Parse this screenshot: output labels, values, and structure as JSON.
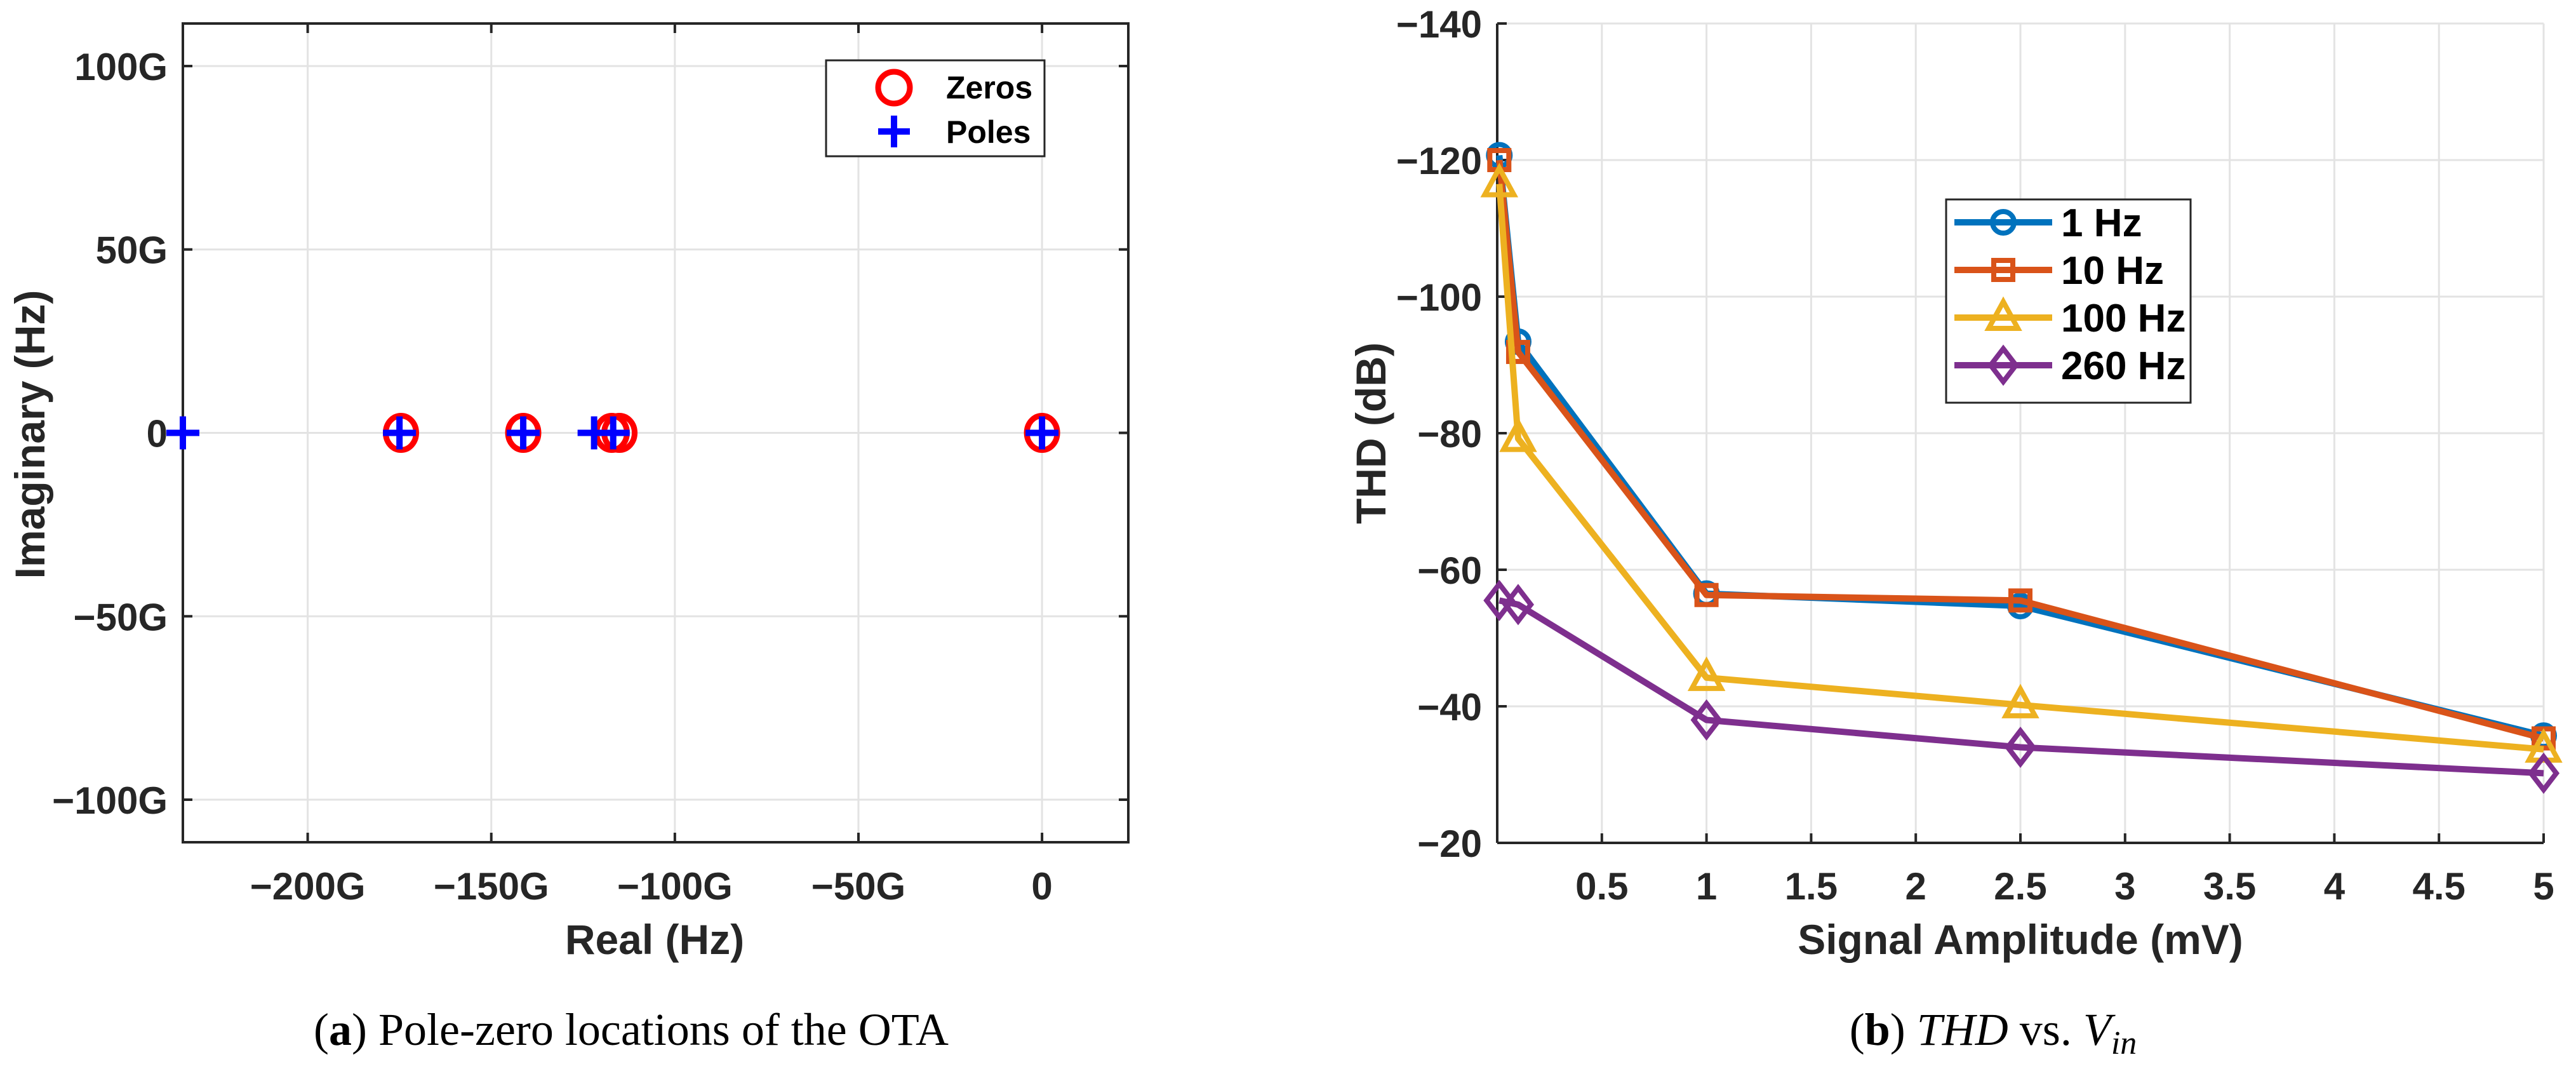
{
  "chart_data": [
    {
      "type": "scatter",
      "caption_label": "a",
      "caption": "Pole-zero locations of the OTA",
      "xlabel": "Real (Hz)",
      "ylabel": "Imaginary (Hz)",
      "xlim": [
        -234,
        23.5
      ],
      "ylim": [
        -111.6,
        111.6
      ],
      "unit_suffix": "G",
      "xticks": [
        -200,
        -150,
        -100,
        -50,
        0
      ],
      "xtick_labels": [
        "−200G",
        "−150G",
        "−100G",
        "−50G",
        "0"
      ],
      "yticks": [
        100,
        50,
        0,
        -50,
        -100
      ],
      "ytick_labels": [
        "100G",
        "50G",
        "0",
        "−50G",
        "−100G"
      ],
      "grid": true,
      "legend_position": "top-right",
      "series": [
        {
          "name": "Zeros",
          "marker": "circle",
          "color": "#FF0000",
          "x": [
            -174.6,
            -141.3,
            -117.2,
            -115.1,
            0
          ],
          "y": [
            0,
            0,
            0,
            0,
            0
          ]
        },
        {
          "name": "Poles",
          "marker": "plus",
          "color": "#0000FF",
          "x": [
            -234,
            -175,
            -141.3,
            -122,
            -116.8,
            0
          ],
          "y": [
            0,
            0,
            0,
            0,
            0,
            0
          ]
        }
      ]
    },
    {
      "type": "line",
      "caption_label": "b",
      "caption_parts": [
        "THD",
        " vs. ",
        "V",
        "in"
      ],
      "xlabel": "Signal Amplitude (mV)",
      "ylabel": "THD (dB)",
      "xlim": [
        0,
        5
      ],
      "ylim": [
        -140,
        -20
      ],
      "y_reversed": true,
      "xticks": [
        0.5,
        1,
        1.5,
        2,
        2.5,
        3,
        3.5,
        4,
        4.5,
        5
      ],
      "xtick_labels": [
        "0.5",
        "1",
        "1.5",
        "2",
        "2.5",
        "3",
        "3.5",
        "4",
        "4.5",
        "5"
      ],
      "yticks": [
        -140,
        -120,
        -100,
        -80,
        -60,
        -40,
        -20
      ],
      "ytick_labels": [
        "−140",
        "−120",
        "−100",
        "−80",
        "−60",
        "−40",
        "−20"
      ],
      "grid": true,
      "legend_position": "upper-center",
      "x": [
        0.01,
        0.1,
        1,
        2.5,
        5
      ],
      "series": [
        {
          "name": "1 Hz",
          "marker": "circle",
          "color": "#0072BD",
          "values": [
            -120.7,
            -93.4,
            -56.5,
            -54.7,
            -35.7
          ]
        },
        {
          "name": "10 Hz",
          "marker": "square",
          "color": "#D95319",
          "values": [
            -120,
            -91.9,
            -56.3,
            -55.5,
            -35.3
          ]
        },
        {
          "name": "100 Hz",
          "marker": "triangle",
          "color": "#EDB120",
          "values": [
            -116.5,
            -79.2,
            -44.2,
            -40.2,
            -33.7
          ]
        },
        {
          "name": "260 Hz",
          "marker": "diamond",
          "color": "#7E2F8E",
          "values": [
            -55.5,
            -54.9,
            -38,
            -34,
            -30.2
          ]
        }
      ]
    }
  ]
}
